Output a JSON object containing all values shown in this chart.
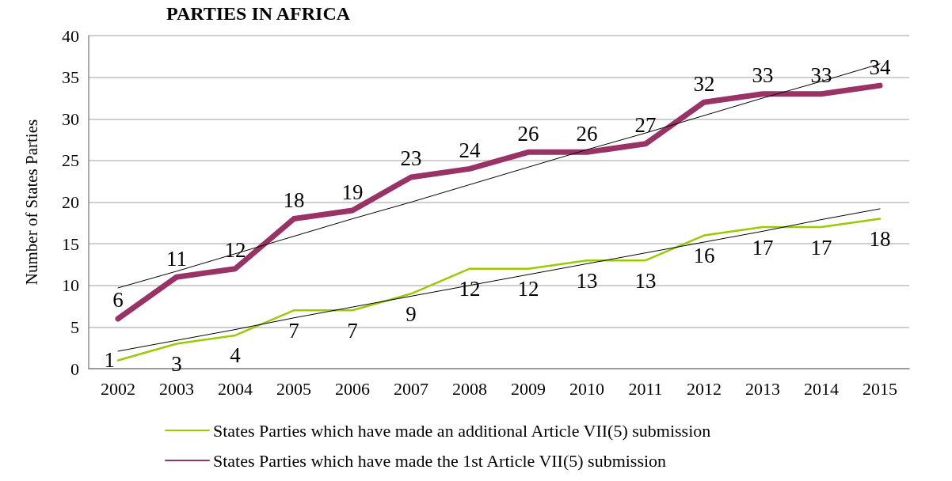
{
  "chart_data": {
    "type": "line",
    "title": "PARTIES IN AFRICA",
    "ylabel": "Number of States Parties",
    "x": [
      2002,
      2003,
      2004,
      2005,
      2006,
      2007,
      2008,
      2009,
      2010,
      2011,
      2012,
      2013,
      2014,
      2015
    ],
    "series": [
      {
        "name": "States Parties which have made an additional Article VII(5) submission",
        "color": "#99cc00",
        "values": [
          1,
          3,
          4,
          7,
          7,
          9,
          12,
          12,
          13,
          13,
          16,
          17,
          17,
          18
        ],
        "value_labels": [
          "1",
          "3",
          "4",
          "7",
          "7",
          "9",
          "12",
          "12",
          "13",
          "13",
          "16",
          "17",
          "17",
          "18"
        ]
      },
      {
        "name": "States Parties which have made the 1st Article VII(5) submission",
        "color": "#993366",
        "values": [
          6,
          11,
          12,
          18,
          19,
          23,
          24,
          26,
          26,
          27,
          32,
          33,
          33,
          34
        ],
        "value_labels": [
          "6",
          "11",
          "12",
          "18",
          "19",
          "23",
          "24",
          "26",
          "26",
          "27",
          "32",
          "33",
          "33",
          "34"
        ]
      },
      {
        "type": "line",
        "color": "#000000",
        "values": [
          2.1,
          3.4,
          4.7,
          6.1,
          7.4,
          8.7,
          10.0,
          11.3,
          12.6,
          13.9,
          15.2,
          16.5,
          17.9,
          19.2
        ]
      },
      {
        "type": "line",
        "color": "#000000",
        "values": [
          9.7,
          11.7,
          13.8,
          15.9,
          18.0,
          20.0,
          22.1,
          24.2,
          26.3,
          28.3,
          30.4,
          32.5,
          34.5,
          36.6
        ]
      }
    ],
    "xlim": [
      2001.5,
      2015.5
    ],
    "xticks": [
      2002,
      2003,
      2004,
      2005,
      2006,
      2007,
      2008,
      2009,
      2010,
      2011,
      2012,
      2013,
      2014,
      2015
    ],
    "ylim": [
      0,
      40
    ],
    "yticks": [
      0,
      5,
      10,
      15,
      20,
      25,
      30,
      35,
      40
    ],
    "grid": "y",
    "legend": "bottom",
    "marker": "none",
    "line_style": "solid"
  }
}
